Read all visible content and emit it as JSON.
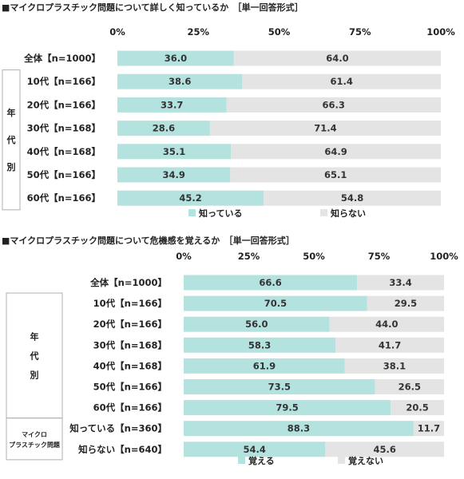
{
  "colors": {
    "primary": "#b4e3df",
    "secondary": "#e4e4e4",
    "frame": "#b0b0b0",
    "text": "#222222"
  },
  "chart_data": [
    {
      "type": "bar",
      "orientation": "horizontal",
      "stacked": "percent",
      "title": "■マイクロプラスチック問題について詳しく知っているか　［単一回答形式］",
      "xlim": [
        0,
        100
      ],
      "ticks": [
        "0%",
        "25%",
        "50%",
        "75%",
        "100%"
      ],
      "categories": [
        "全体【n=1000】",
        "10代【n=166】",
        "20代【n=166】",
        "30代【n=168】",
        "40代【n=168】",
        "50代【n=166】",
        "60代【n=166】"
      ],
      "groups": [
        {
          "label": "年代別",
          "from": 1,
          "to": 6
        }
      ],
      "series": [
        {
          "name": "知っている",
          "values": [
            36.0,
            38.6,
            33.7,
            28.6,
            35.1,
            34.9,
            45.2
          ]
        },
        {
          "name": "知らない",
          "values": [
            64.0,
            61.4,
            66.3,
            71.4,
            64.9,
            65.1,
            54.8
          ]
        }
      ],
      "legend": "bottom"
    },
    {
      "type": "bar",
      "orientation": "horizontal",
      "stacked": "percent",
      "title": "■マイクロプラスチック問題について危機感を覚えるか　［単一回答形式］",
      "xlim": [
        0,
        100
      ],
      "ticks": [
        "0%",
        "25%",
        "50%",
        "75%",
        "100%"
      ],
      "categories": [
        "全体【n=1000】",
        "10代【n=166】",
        "20代【n=166】",
        "30代【n=168】",
        "40代【n=168】",
        "50代【n=166】",
        "60代【n=166】",
        "知っている【n=360】",
        "知らない【n=640】"
      ],
      "groups": [
        {
          "label": "年代別",
          "from": 1,
          "to": 6
        },
        {
          "label": "マイクロプラスチック問題",
          "from": 7,
          "to": 8
        }
      ],
      "series": [
        {
          "name": "覚える",
          "values": [
            66.6,
            70.5,
            56.0,
            58.3,
            61.9,
            73.5,
            79.5,
            88.3,
            54.4
          ]
        },
        {
          "name": "覚えない",
          "values": [
            33.4,
            29.5,
            44.0,
            41.7,
            38.1,
            26.5,
            20.5,
            11.7,
            45.6
          ]
        }
      ],
      "legend": "bottom"
    }
  ]
}
